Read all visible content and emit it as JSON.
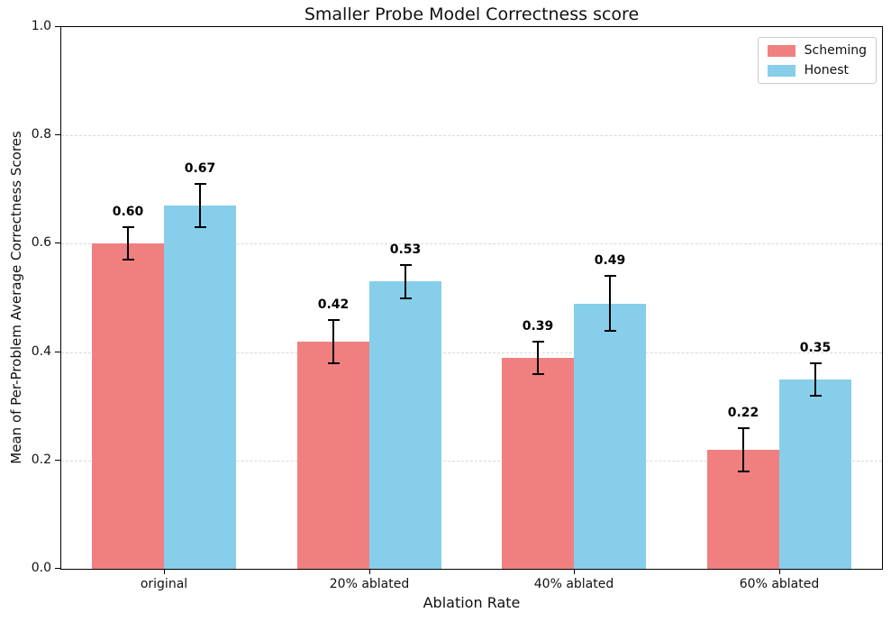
{
  "chart_data": {
    "type": "bar",
    "title": "Smaller Probe Model Correctness score",
    "xlabel": "Ablation Rate",
    "ylabel": "Mean of Per-Problem Average Correctness Scores",
    "categories": [
      "original",
      "20% ablated",
      "40% ablated",
      "60% ablated"
    ],
    "series": [
      {
        "name": "Scheming",
        "color": "#F08080",
        "values": [
          0.6,
          0.42,
          0.39,
          0.22
        ],
        "errors": [
          0.03,
          0.04,
          0.03,
          0.04
        ],
        "value_labels": [
          "0.60",
          "0.42",
          "0.39",
          "0.22"
        ]
      },
      {
        "name": "Honest",
        "color": "#87CEEB",
        "values": [
          0.67,
          0.53,
          0.49,
          0.35
        ],
        "errors": [
          0.04,
          0.03,
          0.05,
          0.03
        ],
        "value_labels": [
          "0.67",
          "0.53",
          "0.49",
          "0.35"
        ]
      }
    ],
    "ylim": [
      0.0,
      1.0
    ],
    "yticks": [
      0.0,
      0.2,
      0.4,
      0.6,
      0.8,
      1.0
    ],
    "ytick_labels": [
      "0.0",
      "0.2",
      "0.4",
      "0.6",
      "0.8",
      "1.0"
    ],
    "grid": {
      "axis": "y",
      "style": "dashed",
      "color": "#d9d9d9"
    },
    "legend": {
      "position": "upper-right"
    },
    "bar_width_fraction": 0.35,
    "errorbar": {
      "color": "#000000",
      "capsize_px": 13
    }
  }
}
